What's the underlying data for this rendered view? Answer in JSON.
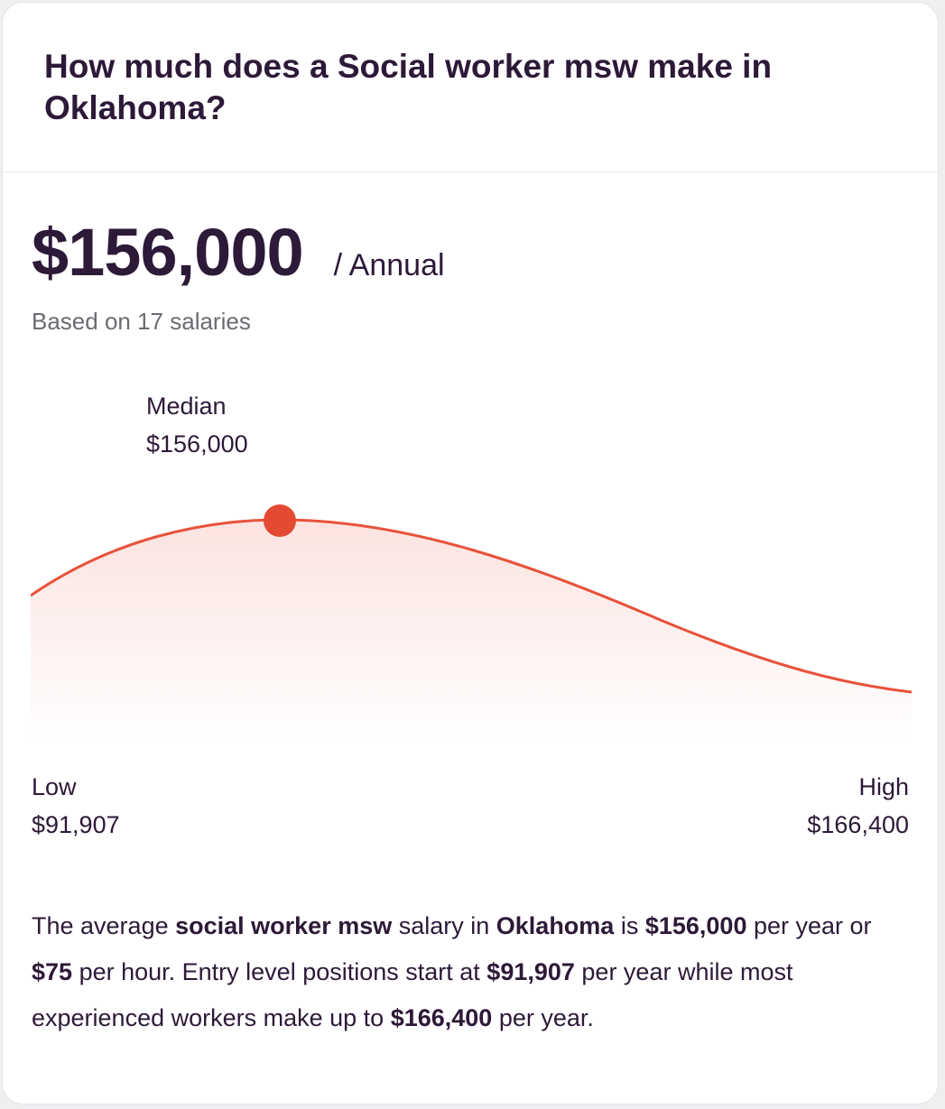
{
  "card": {
    "title": "How much does a Social worker msw make in Oklahoma?"
  },
  "salary": {
    "amount": "$156,000",
    "period": "/ Annual",
    "based_on": "Based on 17 salaries"
  },
  "distribution": {
    "median_label": "Median",
    "median_value": "$156,000",
    "low_label": "Low",
    "low_value": "$91,907",
    "high_label": "High",
    "high_value": "$166,400",
    "curve_color": "#e8523a"
  },
  "summary": {
    "t1": "The average ",
    "b1": "social worker msw",
    "t2": " salary in ",
    "b2": "Oklahoma",
    "t3": " is ",
    "b3": "$156,000",
    "t4": " per year or ",
    "b4": "$75",
    "t5": " per hour. Entry level positions start at ",
    "b5": "$91,907",
    "t6": " per year while most experienced workers make up to ",
    "b6": "$166,400",
    "t7": " per year."
  }
}
